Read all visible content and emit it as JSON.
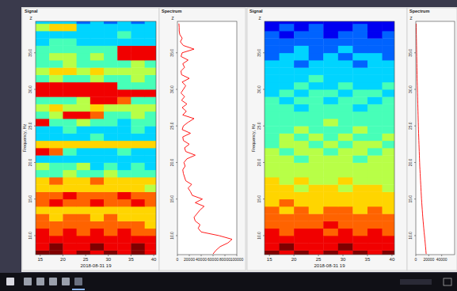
{
  "chart_data": [
    {
      "type": "heatmap",
      "title": "Signal",
      "subtitle": "Z",
      "xlabel": "2018-08-31 19",
      "ylabel": "Frequency, Hz",
      "color": "jet",
      "xlim": [
        14,
        40.5
      ],
      "xticks": [
        15,
        20,
        25,
        30,
        35,
        40
      ],
      "ylim": [
        7.4,
        39.3
      ],
      "yticks": [
        {
          "value": 10,
          "label": "10.0"
        },
        {
          "value": 15,
          "label": "15.0"
        },
        {
          "value": 20,
          "label": "20.0"
        },
        {
          "value": 25,
          "label": "25.0"
        },
        {
          "value": 30,
          "label": "30.0"
        },
        {
          "value": 35,
          "label": "35.0"
        }
      ],
      "zlim": [
        0,
        9
      ],
      "x_edges": [
        14,
        17,
        20,
        23,
        26,
        29,
        32,
        35,
        38,
        40.5
      ],
      "y_edges": [
        7,
        8,
        9,
        10,
        11,
        12,
        13,
        14,
        15,
        16,
        17,
        18,
        19,
        20,
        21,
        22,
        23,
        24,
        25,
        26,
        27,
        28,
        29,
        30,
        31,
        32,
        33,
        34,
        35,
        36,
        37,
        38,
        39,
        40
      ],
      "cells": [
        [
          9,
          9,
          8,
          9,
          8,
          9,
          8,
          9,
          8
        ],
        [
          8,
          9,
          8,
          8,
          9,
          8,
          8,
          9,
          8
        ],
        [
          8,
          8,
          8,
          8,
          8,
          8,
          8,
          8,
          8
        ],
        [
          8,
          7,
          8,
          7,
          8,
          7,
          8,
          7,
          7
        ],
        [
          7,
          7,
          7,
          7,
          7,
          7,
          7,
          7,
          6
        ],
        [
          7,
          6,
          7,
          7,
          6,
          7,
          6,
          6,
          6
        ],
        [
          6,
          6,
          6,
          6,
          6,
          6,
          6,
          6,
          6
        ],
        [
          7,
          8,
          7,
          7,
          8,
          7,
          7,
          8,
          7
        ],
        [
          7,
          7,
          8,
          7,
          7,
          7,
          8,
          7,
          7
        ],
        [
          6,
          6,
          6,
          6,
          6,
          6,
          6,
          6,
          5
        ],
        [
          6,
          7,
          6,
          6,
          7,
          6,
          6,
          6,
          6
        ],
        [
          4,
          4,
          5,
          4,
          4,
          5,
          4,
          4,
          4
        ],
        [
          5,
          4,
          4,
          5,
          3,
          4,
          3,
          4,
          3
        ],
        [
          3,
          3,
          3,
          3,
          3,
          3,
          3,
          3,
          3
        ],
        [
          8,
          7,
          4,
          3,
          3,
          3,
          4,
          3,
          3
        ],
        [
          6,
          6,
          6,
          6,
          6,
          6,
          6,
          6,
          6
        ],
        [
          3,
          3,
          3,
          3,
          4,
          3,
          3,
          3,
          3
        ],
        [
          3,
          3,
          4,
          3,
          3,
          3,
          3,
          4,
          3
        ],
        [
          8,
          4,
          4,
          5,
          4,
          4,
          3,
          4,
          4
        ],
        [
          4,
          5,
          8,
          8,
          7,
          4,
          4,
          5,
          4
        ],
        [
          5,
          6,
          5,
          5,
          6,
          5,
          5,
          5,
          5
        ],
        [
          4,
          4,
          4,
          5,
          8,
          8,
          7,
          4,
          4
        ],
        [
          8,
          8,
          8,
          8,
          8,
          8,
          8,
          8,
          8
        ],
        [
          8,
          8,
          8,
          8,
          8,
          8,
          4,
          4,
          4
        ],
        [
          4,
          5,
          4,
          4,
          5,
          4,
          4,
          5,
          4
        ],
        [
          5,
          6,
          6,
          5,
          6,
          5,
          5,
          5,
          5
        ],
        [
          4,
          4,
          5,
          4,
          4,
          4,
          4,
          5,
          4
        ],
        [
          4,
          5,
          5,
          4,
          5,
          4,
          8,
          8,
          8
        ],
        [
          4,
          4,
          4,
          4,
          4,
          4,
          8,
          8,
          8
        ],
        [
          3,
          4,
          4,
          3,
          3,
          3,
          3,
          3,
          3
        ],
        [
          3,
          3,
          3,
          3,
          3,
          3,
          4,
          3,
          3
        ],
        [
          5,
          6,
          6,
          3,
          3,
          3,
          3,
          3,
          3
        ],
        [
          3,
          3,
          3,
          2,
          3,
          2,
          3,
          2,
          3
        ]
      ]
    },
    {
      "type": "line",
      "title": "Spectrum",
      "subtitle": "Z",
      "orientation": "horizontal",
      "color": "#ff0000",
      "xlim": [
        0,
        100000
      ],
      "xticks": [
        0,
        20000,
        40000,
        60000,
        80000,
        100000
      ],
      "ylim": [
        7.4,
        39.3
      ],
      "yticks": [
        {
          "value": 10,
          "label": "10.0"
        },
        {
          "value": 15,
          "label": "15.0"
        },
        {
          "value": 20,
          "label": "20.0"
        },
        {
          "value": 25,
          "label": "25.0"
        },
        {
          "value": 30,
          "label": "30.0"
        },
        {
          "value": 35,
          "label": "35.0"
        }
      ],
      "y": [
        7.5,
        8,
        8.5,
        9,
        9.5,
        10,
        10.5,
        11,
        11.5,
        12,
        12.5,
        13,
        13.5,
        14,
        14.5,
        15,
        15.5,
        16,
        16.5,
        17,
        17.5,
        18,
        18.5,
        19,
        19.5,
        20,
        20.5,
        21,
        21.5,
        22,
        22.5,
        23,
        23.5,
        24,
        24.5,
        25,
        25.5,
        26,
        26.5,
        27,
        27.5,
        28,
        28.5,
        29,
        29.5,
        30,
        30.5,
        31,
        31.5,
        32,
        32.5,
        33,
        33.5,
        34,
        34.5,
        35,
        35.5,
        36,
        36.5,
        37,
        37.5,
        38,
        38.5,
        39
      ],
      "values": [
        60000,
        65000,
        72000,
        85000,
        92000,
        70000,
        40000,
        35000,
        38000,
        30000,
        28000,
        33000,
        38000,
        45000,
        30000,
        42000,
        25000,
        22000,
        18000,
        24000,
        14000,
        12000,
        10000,
        9000,
        13000,
        11000,
        16000,
        30000,
        14000,
        12000,
        20000,
        10000,
        9000,
        22000,
        8000,
        10000,
        18000,
        28000,
        9000,
        15000,
        8000,
        16000,
        7000,
        12000,
        6000,
        10000,
        14000,
        8000,
        20000,
        7000,
        6000,
        12000,
        9000,
        18000,
        6000,
        8000,
        28000,
        10000,
        5000,
        8000,
        4000,
        3000,
        3000,
        2500
      ]
    },
    {
      "type": "heatmap",
      "title": "Signal",
      "subtitle": "Z",
      "xlabel": "2018-08-31 19",
      "ylabel": "Frequency, Hz",
      "color": "jet",
      "xlim": [
        14,
        40.5
      ],
      "xticks": [
        15,
        20,
        25,
        30,
        35,
        40
      ],
      "ylim": [
        7.4,
        39.3
      ],
      "yticks": [
        {
          "value": 10,
          "label": "10.0"
        },
        {
          "value": 15,
          "label": "15.0"
        },
        {
          "value": 20,
          "label": "20.0"
        },
        {
          "value": 25,
          "label": "25.0"
        },
        {
          "value": 30,
          "label": "30.0"
        },
        {
          "value": 35,
          "label": "35.0"
        }
      ],
      "zlim": [
        0,
        9
      ],
      "x_edges": [
        14,
        17,
        20,
        23,
        26,
        29,
        32,
        35,
        38,
        40.5
      ],
      "y_edges": [
        7,
        8,
        9,
        10,
        11,
        12,
        13,
        14,
        15,
        16,
        17,
        18,
        19,
        20,
        21,
        22,
        23,
        24,
        25,
        26,
        27,
        28,
        29,
        30,
        31,
        32,
        33,
        34,
        35,
        36,
        37,
        38,
        39,
        40
      ],
      "cells": [
        [
          9,
          8,
          9,
          8,
          9,
          8,
          9,
          8,
          9
        ],
        [
          8,
          9,
          8,
          8,
          8,
          9,
          8,
          8,
          8
        ],
        [
          8,
          8,
          8,
          8,
          8,
          8,
          8,
          8,
          8
        ],
        [
          8,
          7,
          8,
          8,
          7,
          8,
          7,
          8,
          7
        ],
        [
          7,
          7,
          7,
          7,
          8,
          7,
          7,
          7,
          7
        ],
        [
          7,
          7,
          7,
          7,
          7,
          7,
          7,
          7,
          7
        ],
        [
          7,
          6,
          7,
          6,
          7,
          7,
          6,
          7,
          6
        ],
        [
          6,
          7,
          6,
          6,
          6,
          6,
          6,
          6,
          6
        ],
        [
          6,
          6,
          6,
          6,
          6,
          6,
          6,
          6,
          6
        ],
        [
          6,
          6,
          5,
          6,
          6,
          5,
          6,
          6,
          5
        ],
        [
          6,
          5,
          6,
          5,
          5,
          6,
          5,
          5,
          5
        ],
        [
          5,
          5,
          5,
          5,
          5,
          5,
          5,
          5,
          5
        ],
        [
          5,
          5,
          5,
          5,
          5,
          5,
          5,
          5,
          5
        ],
        [
          5,
          5,
          4,
          5,
          5,
          5,
          4,
          5,
          5
        ],
        [
          5,
          4,
          5,
          5,
          4,
          5,
          5,
          4,
          5
        ],
        [
          4,
          5,
          5,
          4,
          5,
          4,
          5,
          5,
          4
        ],
        [
          4,
          5,
          4,
          5,
          4,
          5,
          4,
          4,
          5
        ],
        [
          4,
          4,
          5,
          4,
          4,
          4,
          5,
          4,
          4
        ],
        [
          4,
          4,
          4,
          4,
          5,
          4,
          4,
          4,
          4
        ],
        [
          4,
          4,
          4,
          4,
          4,
          4,
          4,
          4,
          4
        ],
        [
          4,
          4,
          3,
          4,
          4,
          4,
          3,
          4,
          4
        ],
        [
          4,
          3,
          4,
          4,
          3,
          4,
          4,
          3,
          4
        ],
        [
          3,
          4,
          3,
          4,
          4,
          3,
          4,
          4,
          3
        ],
        [
          3,
          3,
          4,
          3,
          3,
          4,
          3,
          3,
          4
        ],
        [
          3,
          3,
          3,
          4,
          3,
          3,
          3,
          3,
          3
        ],
        [
          3,
          3,
          3,
          3,
          3,
          3,
          3,
          3,
          3
        ],
        [
          3,
          3,
          2,
          3,
          3,
          3,
          2,
          3,
          3
        ],
        [
          2,
          3,
          3,
          2,
          3,
          2,
          3,
          3,
          2
        ],
        [
          2,
          2,
          3,
          2,
          2,
          3,
          2,
          2,
          2
        ],
        [
          2,
          2,
          2,
          2,
          2,
          2,
          2,
          2,
          2
        ],
        [
          2,
          1,
          2,
          2,
          1,
          2,
          2,
          1,
          2
        ],
        [
          1,
          2,
          1,
          2,
          1,
          1,
          2,
          1,
          1
        ],
        [
          1,
          1,
          1,
          1,
          1,
          1,
          1,
          1,
          1
        ]
      ]
    },
    {
      "type": "line",
      "title": "Spectrum",
      "subtitle": "Z",
      "orientation": "horizontal",
      "color": "#ff0000",
      "xlim": [
        0,
        60000
      ],
      "xticks": [
        0,
        20000,
        40000
      ],
      "ylim": [
        7.4,
        39.3
      ],
      "yticks": [
        {
          "value": 10,
          "label": "10.0"
        },
        {
          "value": 15,
          "label": "15.0"
        },
        {
          "value": 20,
          "label": "20.0"
        },
        {
          "value": 25,
          "label": "25.0"
        },
        {
          "value": 30,
          "label": "30.0"
        },
        {
          "value": 35,
          "label": "35.0"
        }
      ],
      "y": [
        7.5,
        8,
        8.5,
        9,
        9.5,
        10,
        10.5,
        11,
        11.5,
        12,
        12.5,
        13,
        13.5,
        14,
        14.5,
        15,
        15.5,
        16,
        16.5,
        17,
        17.5,
        18,
        18.5,
        19,
        19.5,
        20,
        20.5,
        21,
        21.5,
        22,
        22.5,
        23,
        23.5,
        24,
        24.5,
        25,
        25.5,
        26,
        26.5,
        27,
        27.5,
        28,
        28.5,
        29,
        29.5,
        30,
        30.5,
        31,
        31.5,
        32,
        32.5,
        33,
        33.5,
        34,
        34.5,
        35,
        35.5,
        36,
        36.5,
        37,
        37.5,
        38,
        38.5,
        39
      ],
      "values": [
        16000,
        15500,
        15000,
        14500,
        14000,
        13400,
        12800,
        12300,
        11800,
        11300,
        10800,
        10400,
        10000,
        9600,
        9200,
        8800,
        8500,
        8200,
        7900,
        7600,
        7300,
        7000,
        6700,
        6400,
        6100,
        5900,
        5700,
        5500,
        5300,
        5100,
        4900,
        4700,
        4500,
        4300,
        4100,
        3950,
        3800,
        3650,
        3500,
        3350,
        3200,
        3050,
        2900,
        2750,
        2600,
        2450,
        2300,
        2150,
        2000,
        1900,
        1800,
        1700,
        1600,
        1500,
        1400,
        1300,
        1200,
        1100,
        1000,
        900,
        800,
        700,
        600,
        500
      ]
    }
  ]
}
